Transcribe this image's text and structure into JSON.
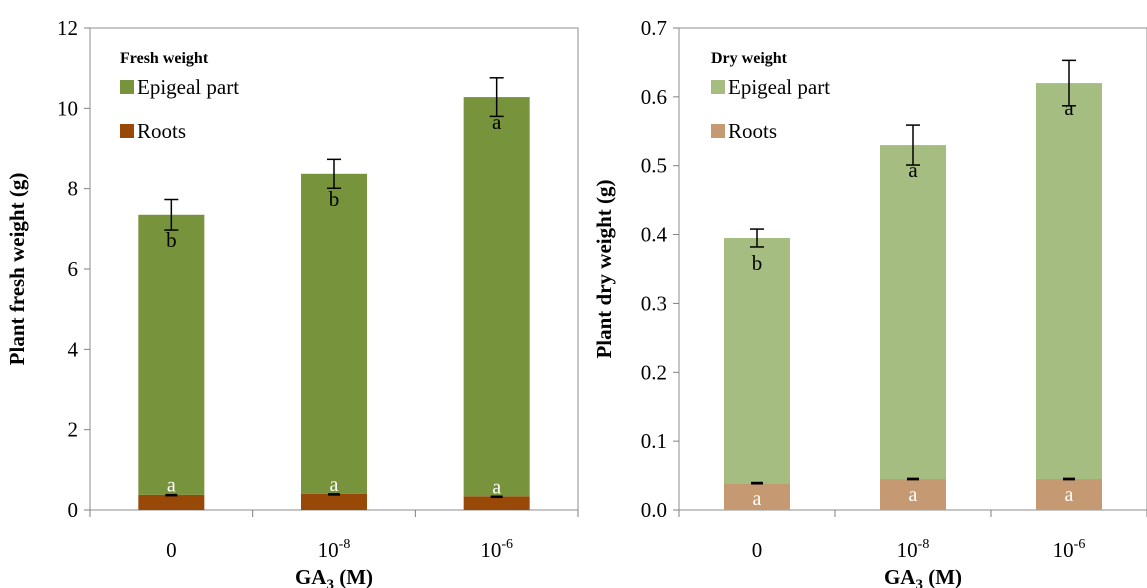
{
  "chart_data": [
    {
      "type": "bar",
      "stacked": true,
      "title": "Fresh weight",
      "ylabel": "Plant fresh weight (g)",
      "xlabel": "GA3 (M)",
      "xlabel_base": "GA",
      "xlabel_sub": "3",
      "xlabel_tail": " (M)",
      "ylim": [
        0,
        12
      ],
      "yticks": [
        "0",
        "2",
        "4",
        "6",
        "8",
        "10",
        "12"
      ],
      "categories": [
        {
          "base": "0",
          "exp": ""
        },
        {
          "base": "10",
          "exp": "-8"
        },
        {
          "base": "10",
          "exp": "-6"
        }
      ],
      "legend_position": "top-left",
      "series": [
        {
          "name": "Epigeal part",
          "color": "#77933c",
          "values": [
            6.97,
            7.97,
            9.94
          ],
          "totals": [
            7.35,
            8.37,
            10.28
          ],
          "errors": [
            0.38,
            0.36,
            0.48
          ],
          "letters": [
            "b",
            "b",
            "a"
          ]
        },
        {
          "name": "Roots",
          "color": "#984807",
          "values": [
            0.38,
            0.4,
            0.34
          ],
          "errors": [
            0.02,
            0.02,
            0.02
          ],
          "letters": [
            "a",
            "a",
            "a"
          ]
        }
      ]
    },
    {
      "type": "bar",
      "stacked": true,
      "title": "Dry weight",
      "ylabel": "Plant dry  weight (g)",
      "xlabel": "GA3 (M)",
      "xlabel_base": "GA",
      "xlabel_sub": "3",
      "xlabel_tail": " (M)",
      "ylim": [
        0,
        0.7
      ],
      "yticks": [
        "0.0",
        "0.1",
        "0.2",
        "0.3",
        "0.4",
        "0.5",
        "0.6",
        "0.7"
      ],
      "categories": [
        {
          "base": "0",
          "exp": ""
        },
        {
          "base": "10",
          "exp": "-8"
        },
        {
          "base": "10",
          "exp": "-6"
        }
      ],
      "legend_position": "top-left",
      "series": [
        {
          "name": "Epigeal part",
          "color": "#a6bd82",
          "values": [
            0.356,
            0.485,
            0.575
          ],
          "totals": [
            0.395,
            0.53,
            0.62
          ],
          "errors": [
            0.013,
            0.029,
            0.033
          ],
          "letters": [
            "b",
            "a",
            "a"
          ]
        },
        {
          "name": "Roots",
          "color": "#c59a72",
          "values": [
            0.039,
            0.045,
            0.045
          ],
          "errors": [
            0.002,
            0.002,
            0.002
          ],
          "letters": [
            "a",
            "a",
            "a"
          ]
        }
      ]
    }
  ]
}
